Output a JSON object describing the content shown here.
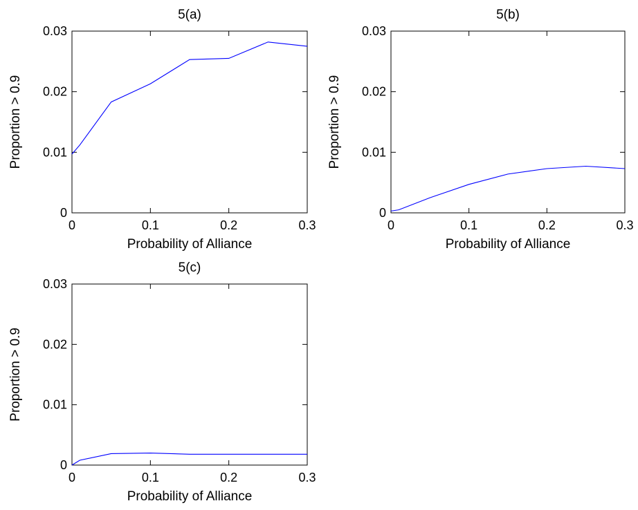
{
  "chart_data": [
    {
      "type": "line",
      "title": "5(a)",
      "xlabel": "Probability of Alliance",
      "ylabel": "Proportion > 0.9",
      "xlim": [
        0,
        0.3
      ],
      "ylim": [
        0,
        0.03
      ],
      "xticks": [
        0,
        0.1,
        0.2,
        0.3
      ],
      "xtick_labels": [
        "0",
        "0.1",
        "0.2",
        "0.3"
      ],
      "yticks": [
        0,
        0.01,
        0.02,
        0.03
      ],
      "ytick_labels": [
        "0",
        "0.01",
        "0.02",
        "0.03"
      ],
      "grid": false,
      "series": [
        {
          "color": "#0000ff",
          "x": [
            0,
            0.01,
            0.05,
            0.1,
            0.15,
            0.2,
            0.25,
            0.3
          ],
          "y": [
            0.0097,
            0.0112,
            0.0183,
            0.0213,
            0.0253,
            0.0255,
            0.0282,
            0.0275
          ]
        }
      ]
    },
    {
      "type": "line",
      "title": "5(b)",
      "xlabel": "Probability of Alliance",
      "ylabel": "Proportion > 0.9",
      "xlim": [
        0,
        0.3
      ],
      "ylim": [
        0,
        0.03
      ],
      "xticks": [
        0,
        0.1,
        0.2,
        0.3
      ],
      "xtick_labels": [
        "0",
        "0.1",
        "0.2",
        "0.3"
      ],
      "yticks": [
        0,
        0.01,
        0.02,
        0.03
      ],
      "ytick_labels": [
        "0",
        "0.01",
        "0.02",
        "0.03"
      ],
      "grid": false,
      "series": [
        {
          "color": "#0000ff",
          "x": [
            0,
            0.01,
            0.05,
            0.1,
            0.15,
            0.2,
            0.25,
            0.3
          ],
          "y": [
            0.0003,
            0.0005,
            0.0025,
            0.0047,
            0.0064,
            0.0073,
            0.0077,
            0.0073
          ]
        }
      ]
    },
    {
      "type": "line",
      "title": "5(c)",
      "xlabel": "Probability of Alliance",
      "ylabel": "Proportion > 0.9",
      "xlim": [
        0,
        0.3
      ],
      "ylim": [
        0,
        0.03
      ],
      "xticks": [
        0,
        0.1,
        0.2,
        0.3
      ],
      "xtick_labels": [
        "0",
        "0.1",
        "0.2",
        "0.3"
      ],
      "yticks": [
        0,
        0.01,
        0.02,
        0.03
      ],
      "ytick_labels": [
        "0",
        "0.01",
        "0.02",
        "0.03"
      ],
      "grid": false,
      "series": [
        {
          "color": "#0000ff",
          "x": [
            0,
            0.01,
            0.05,
            0.1,
            0.15,
            0.2,
            0.25,
            0.3
          ],
          "y": [
            0.0,
            0.0008,
            0.0019,
            0.002,
            0.0018,
            0.0018,
            0.0018,
            0.0018
          ]
        }
      ]
    }
  ]
}
